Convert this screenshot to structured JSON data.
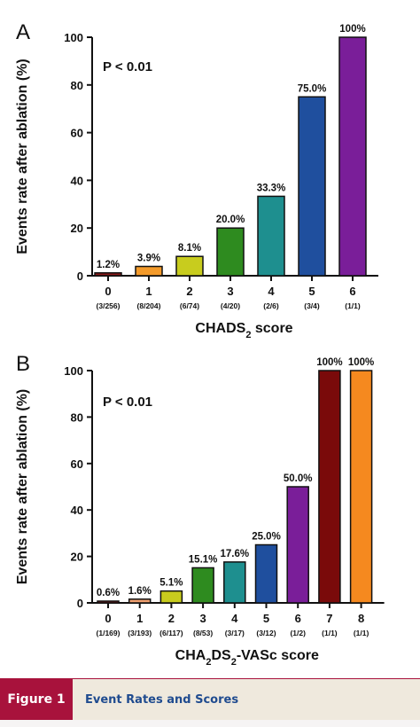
{
  "chart_data": [
    {
      "type": "bar",
      "panel_label": "A",
      "annotation": "P < 0.01",
      "ylabel": "Events rate after ablation (%)",
      "xlabel_parts": [
        "CHADS",
        "2",
        " score"
      ],
      "ylim": [
        0,
        100
      ],
      "yticks": [
        0,
        20,
        40,
        60,
        80,
        100
      ],
      "categories": [
        "0",
        "1",
        "2",
        "3",
        "4",
        "5",
        "6"
      ],
      "counts": [
        "(3/256)",
        "(8/204)",
        "(6/74)",
        "(4/20)",
        "(2/6)",
        "(3/4)",
        "(1/1)"
      ],
      "values": [
        1.2,
        3.9,
        8.1,
        20.0,
        33.3,
        75.0,
        100
      ],
      "value_labels": [
        "1.2%",
        "3.9%",
        "8.1%",
        "20.0%",
        "33.3%",
        "75.0%",
        "100%"
      ],
      "colors": [
        "#8b1a1a",
        "#f39a2a",
        "#c8cc1e",
        "#2e8b1f",
        "#1e8f8f",
        "#1f4f9e",
        "#7a1e99"
      ]
    },
    {
      "type": "bar",
      "panel_label": "B",
      "annotation": "P < 0.01",
      "ylabel": "Events rate after ablation (%)",
      "xlabel_parts": [
        "CHA",
        "2",
        "DS",
        "2",
        "-VASc score"
      ],
      "ylim": [
        0,
        100
      ],
      "yticks": [
        0,
        20,
        40,
        60,
        80,
        100
      ],
      "categories": [
        "0",
        "1",
        "2",
        "3",
        "4",
        "5",
        "6",
        "7",
        "8"
      ],
      "counts": [
        "(1/169)",
        "(3/193)",
        "(6/117)",
        "(8/53)",
        "(3/17)",
        "(3/12)",
        "(1/2)",
        "(1/1)",
        "(1/1)"
      ],
      "values": [
        0.6,
        1.6,
        5.1,
        15.1,
        17.6,
        25.0,
        50.0,
        100,
        100
      ],
      "value_labels": [
        "0.6%",
        "1.6%",
        "5.1%",
        "15.1%",
        "17.6%",
        "25.0%",
        "50.0%",
        "100%",
        "100%"
      ],
      "colors": [
        "#8b1a1a",
        "#f0a070",
        "#c8cc1e",
        "#2e8b1f",
        "#1e8f8f",
        "#1f4f9e",
        "#7a1e99",
        "#7a0a0a",
        "#f5891f"
      ]
    }
  ],
  "caption": {
    "label": "Figure 1",
    "title": "Event Rates and Scores"
  }
}
